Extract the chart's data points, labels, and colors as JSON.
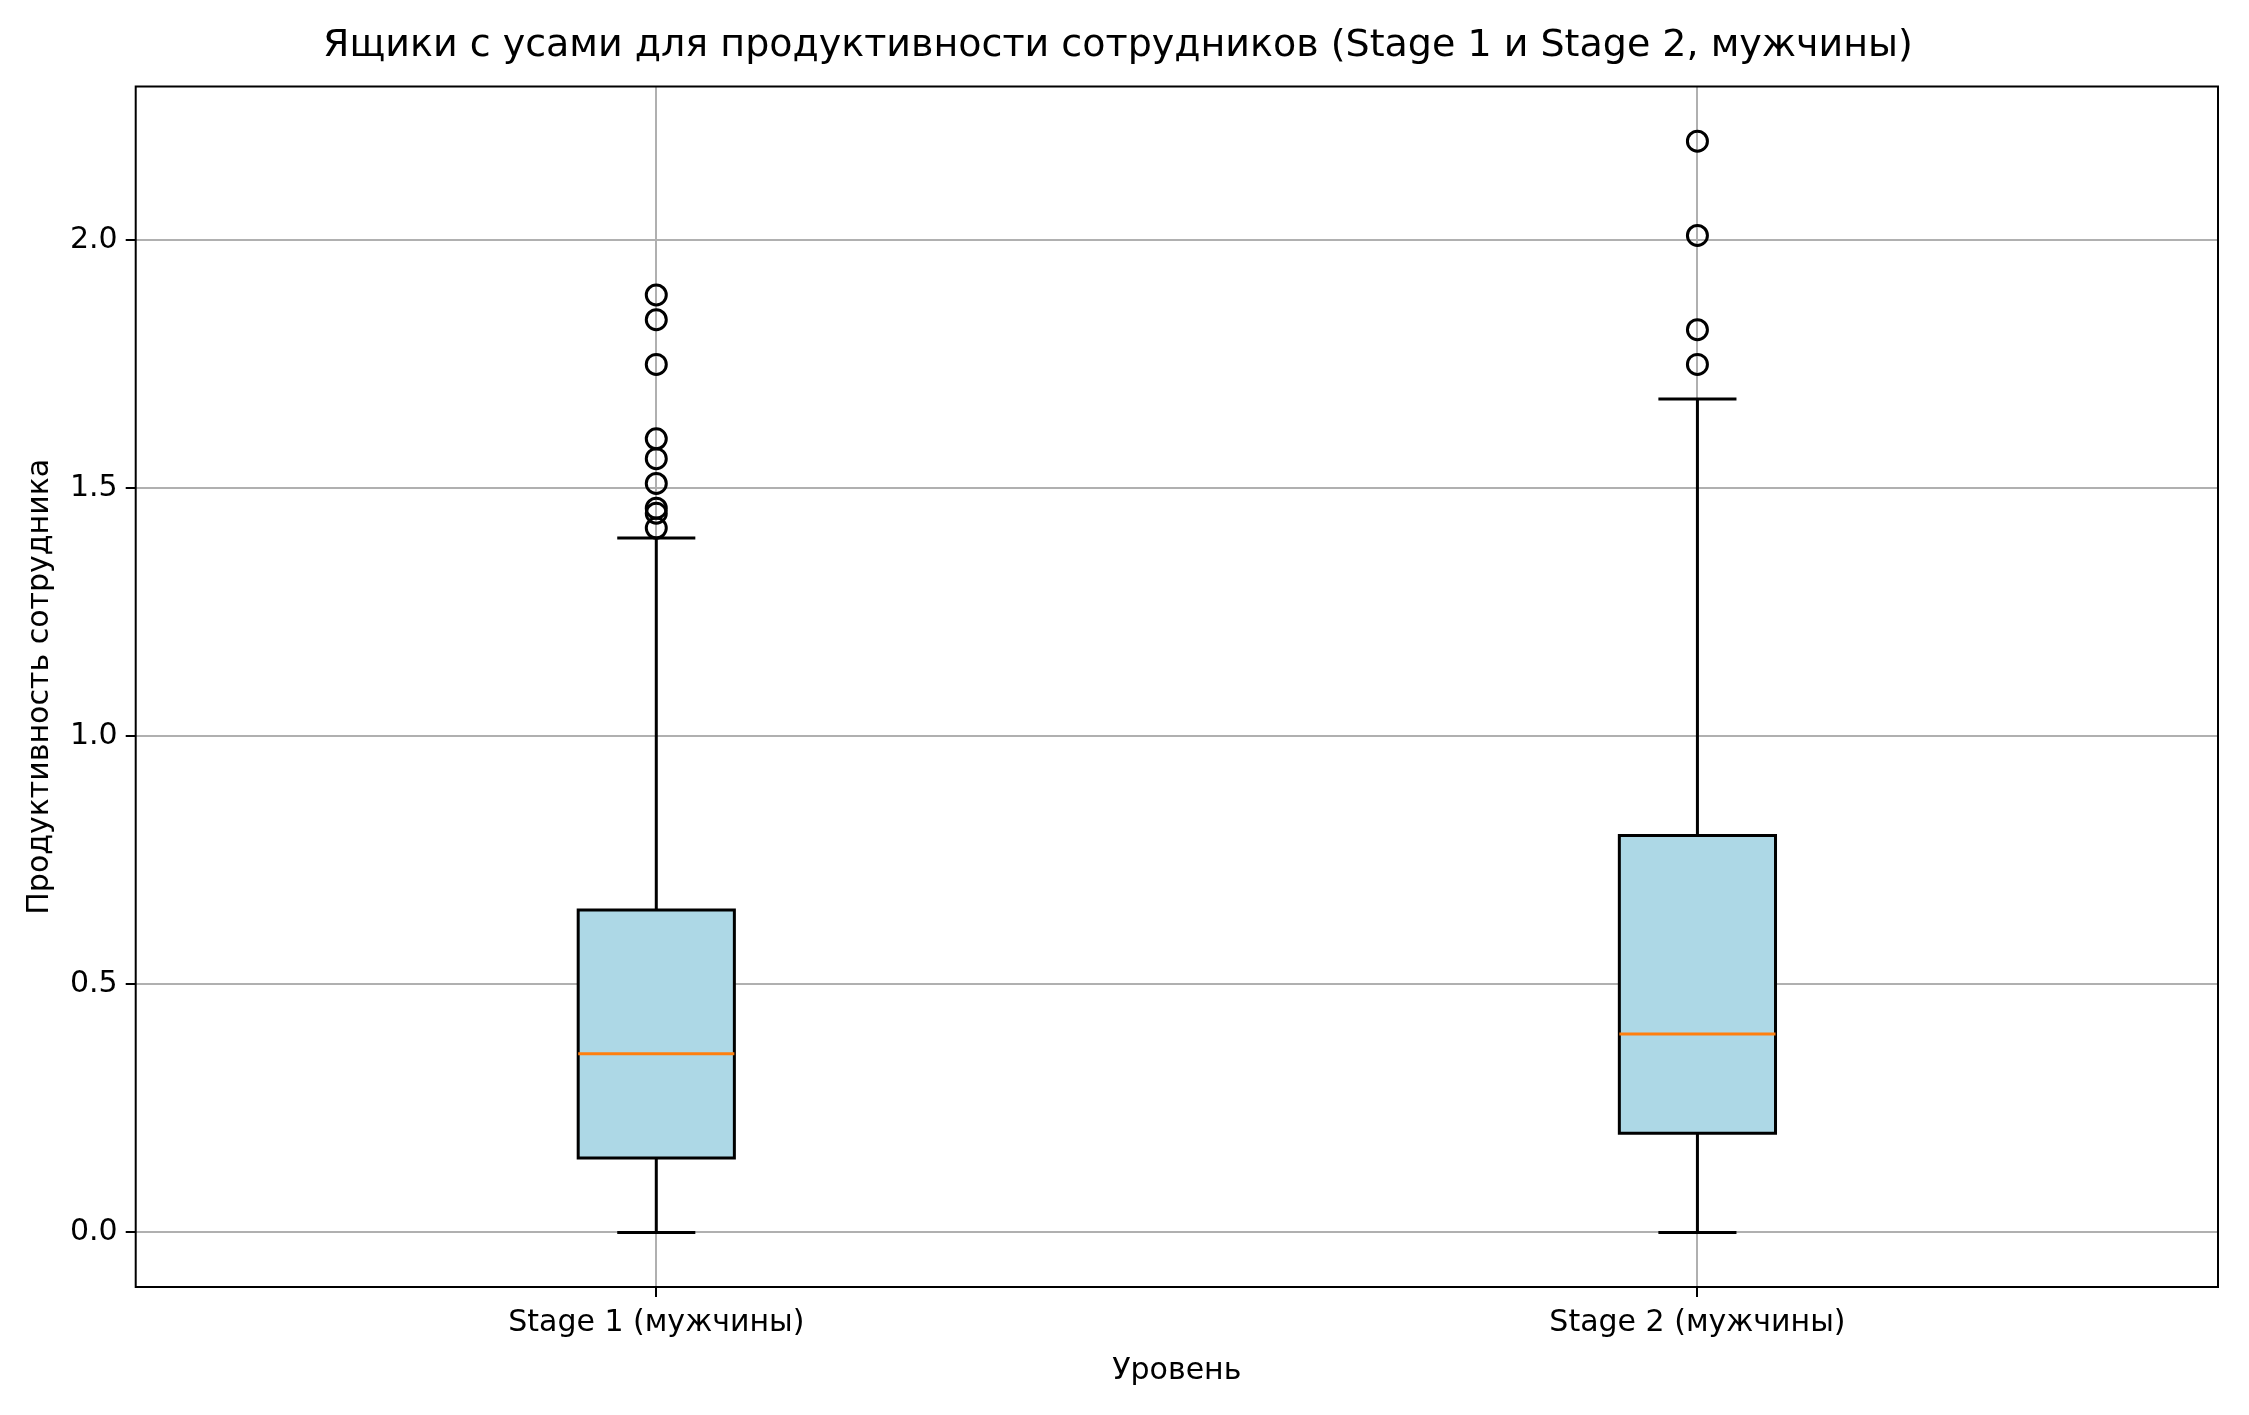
{
  "chart_data": {
    "type": "box",
    "title": "Ящики с усами для продуктивности сотрудников (Stage 1 и Stage 2, мужчины)",
    "xlabel": "Уровень",
    "ylabel": "Продуктивность сотрудника",
    "categories": [
      "Stage 1 (мужчины)",
      "Stage 2 (мужчины)"
    ],
    "boxes": [
      {
        "low": 0,
        "q1": 0.15,
        "median": 0.36,
        "q3": 0.65,
        "high": 1.4,
        "outliers": [
          1.89,
          1.84,
          1.75,
          1.6,
          1.56,
          1.51,
          1.46,
          1.45,
          1.42
        ]
      },
      {
        "low": 0,
        "q1": 0.2,
        "median": 0.4,
        "q3": 0.8,
        "high": 1.68,
        "outliers": [
          2.2,
          2.01,
          1.82,
          1.75
        ]
      }
    ],
    "color": "#add8e6",
    "ylim": [
      -0.11,
      2.31
    ],
    "yticks": [
      {
        "value": 0,
        "label": "0.0"
      },
      {
        "value": 0.5,
        "label": "0.5"
      },
      {
        "value": 1,
        "label": "1.0"
      },
      {
        "value": 1.5,
        "label": "1.5"
      },
      {
        "value": 2,
        "label": "2.0"
      }
    ],
    "grid": true,
    "legend": false
  }
}
